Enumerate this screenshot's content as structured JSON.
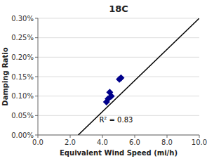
{
  "chart_data": {
    "type": "scatter",
    "title": "18C",
    "x_label": "Equivalent Wind Speed (mi/h)",
    "y_label": "Damping Ratio",
    "xlim": [
      0.0,
      10.0
    ],
    "ylim": [
      0.0,
      0.003
    ],
    "xticks": [
      {
        "value": 0.0,
        "label": "0.0"
      },
      {
        "value": 2.0,
        "label": "2.0"
      },
      {
        "value": 4.0,
        "label": "4.0"
      },
      {
        "value": 6.0,
        "label": "6.0"
      },
      {
        "value": 8.0,
        "label": "8.0"
      },
      {
        "value": 10.0,
        "label": "10.0"
      }
    ],
    "yticks": [
      {
        "value": 0.0,
        "label": "0.00%"
      },
      {
        "value": 0.0005,
        "label": "0.05%"
      },
      {
        "value": 0.001,
        "label": "0.10%"
      },
      {
        "value": 0.0015,
        "label": "0.15%"
      },
      {
        "value": 0.002,
        "label": "0.20%"
      },
      {
        "value": 0.0025,
        "label": "0.25%"
      },
      {
        "value": 0.003,
        "label": "0.30%"
      }
    ],
    "grid": "y",
    "series": [
      {
        "type": "scatter",
        "marker": "diamond",
        "color": "#00008B",
        "x": [
          4.25,
          4.35,
          4.45,
          4.55,
          5.05,
          5.15
        ],
        "values": [
          0.00085,
          0.00093,
          0.0011,
          0.001,
          0.00143,
          0.00147
        ]
      },
      {
        "type": "line",
        "color": "#000000",
        "x": [
          2.5,
          10.0
        ],
        "values": [
          0.0,
          0.003
        ]
      }
    ],
    "annotations": [
      {
        "text": "R² = 0.83",
        "x": 3.8,
        "y": 0.00033
      }
    ]
  }
}
